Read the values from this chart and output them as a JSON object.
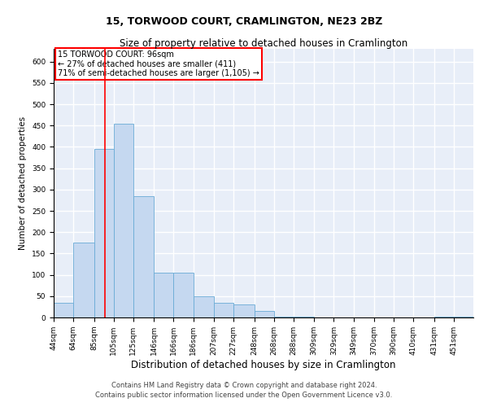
{
  "title": "15, TORWOOD COURT, CRAMLINGTON, NE23 2BZ",
  "subtitle": "Size of property relative to detached houses in Cramlington",
  "xlabel": "Distribution of detached houses by size in Cramlington",
  "ylabel": "Number of detached properties",
  "annotation_line1": "15 TORWOOD COURT: 96sqm",
  "annotation_line2": "← 27% of detached houses are smaller (411)",
  "annotation_line3": "71% of semi-detached houses are larger (1,105) →",
  "property_size": 96,
  "footer_line1": "Contains HM Land Registry data © Crown copyright and database right 2024.",
  "footer_line2": "Contains public sector information licensed under the Open Government Licence v3.0.",
  "bins": [
    44,
    64,
    85,
    105,
    125,
    146,
    166,
    186,
    207,
    227,
    248,
    268,
    288,
    309,
    329,
    349,
    370,
    390,
    410,
    431,
    451
  ],
  "counts": [
    35,
    175,
    395,
    455,
    285,
    105,
    105,
    50,
    35,
    30,
    15,
    2,
    2,
    0,
    0,
    0,
    0,
    0,
    0,
    2,
    2
  ],
  "bar_color": "#c5d8f0",
  "bar_edge_color": "#6aabd6",
  "vline_color": "red",
  "vline_x": 96,
  "ylim": [
    0,
    630
  ],
  "yticks": [
    0,
    50,
    100,
    150,
    200,
    250,
    300,
    350,
    400,
    450,
    500,
    550,
    600
  ],
  "bg_color": "#e8eef8",
  "grid_color": "white",
  "title_fontsize": 9,
  "subtitle_fontsize": 8.5,
  "ylabel_fontsize": 7.5,
  "xlabel_fontsize": 8.5,
  "tick_fontsize": 6.5,
  "footer_fontsize": 6,
  "annot_fontsize": 7
}
